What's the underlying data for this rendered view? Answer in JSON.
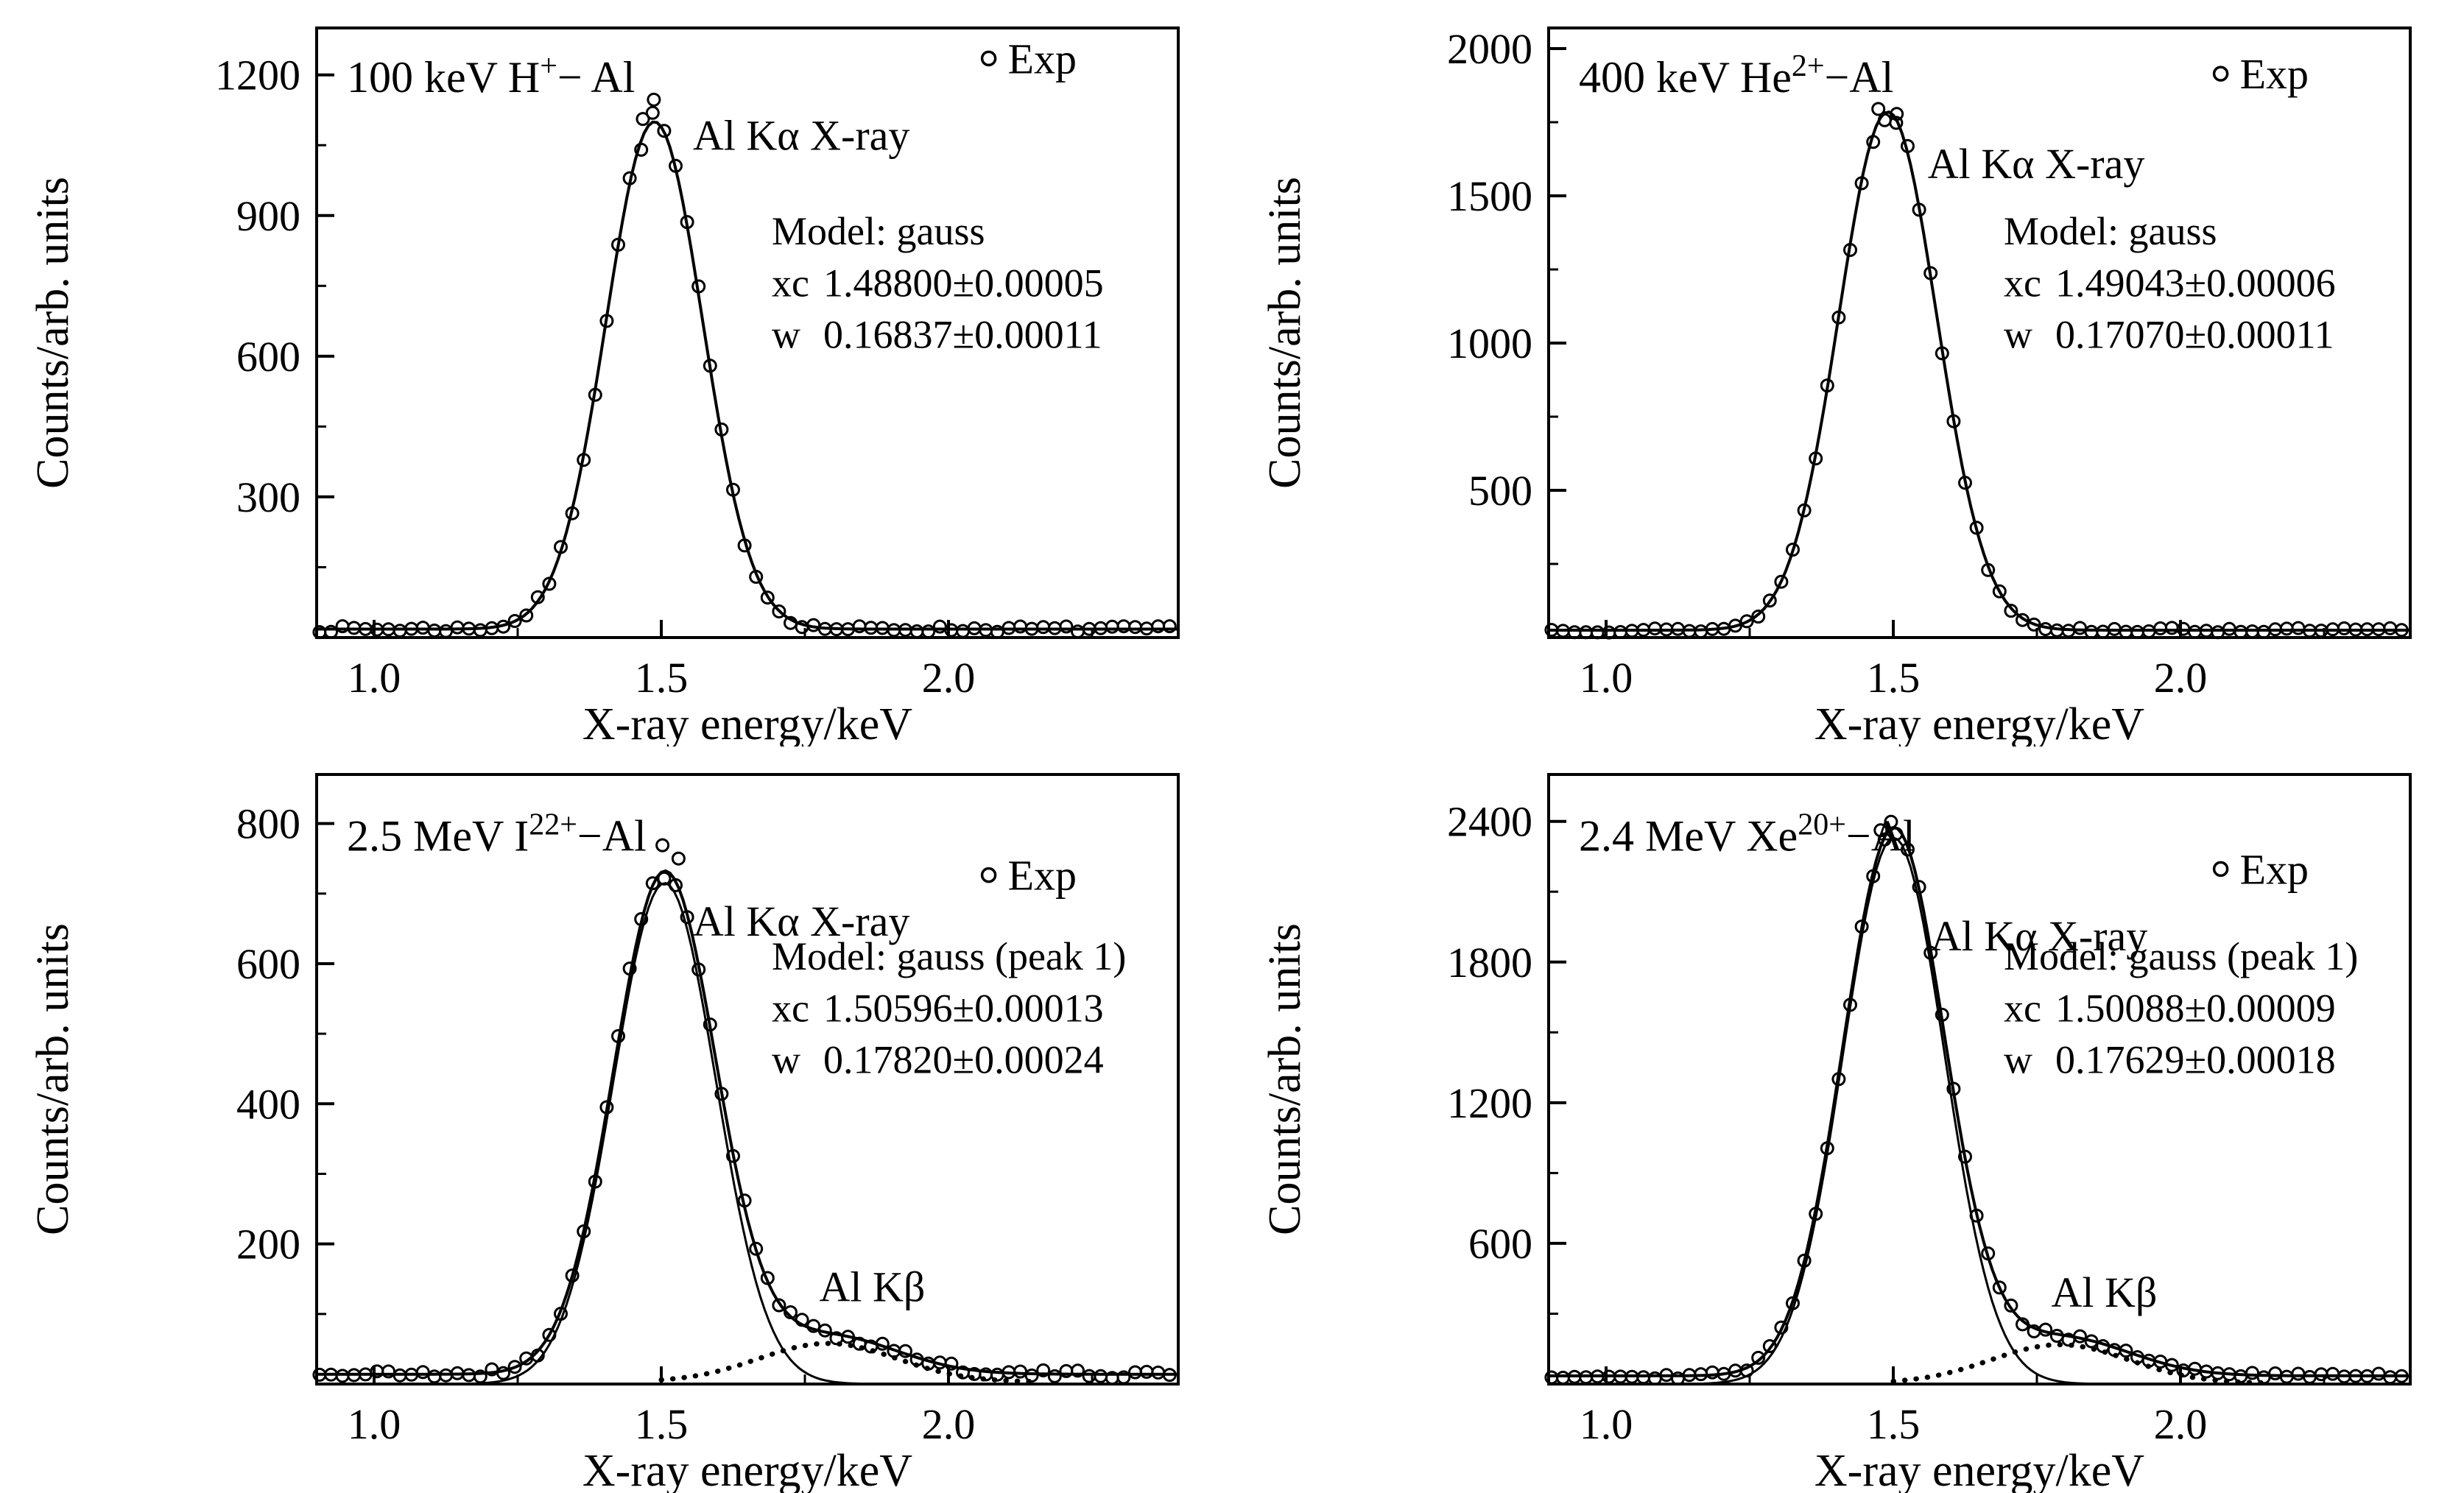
{
  "figure": {
    "background_color": "#ffffff",
    "foreground_color": "#000000",
    "xlabel": "X-ray energy/keV",
    "ylabel": "Counts/arb. units",
    "legend_label": "Exp",
    "legend_marker": "open-circle"
  },
  "chart_data": [
    {
      "type": "scatter",
      "subtype": "xray-spectrum-with-gauss-fit",
      "title_text": "100 keV H⁺− Al",
      "title_parts": [
        {
          "t": "100 keV H"
        },
        {
          "t": "+",
          "sup": true
        },
        {
          "t": "− Al"
        }
      ],
      "xlabel": "X-ray energy/keV",
      "ylabel": "Counts/arb. units",
      "xlim": [
        0.9,
        2.4
      ],
      "ylim": [
        0,
        1300
      ],
      "xticks": [
        1.0,
        1.5,
        2.0
      ],
      "xminor": [
        1.25,
        1.75,
        2.25
      ],
      "yticks": [
        300,
        600,
        900,
        1200
      ],
      "yminor": [
        150,
        450,
        750,
        1050
      ],
      "grid": false,
      "legend_label": "Exp",
      "legend_position": "top-right",
      "peak_annotation": {
        "text": "Al Kα X-ray",
        "x": 1.555,
        "y": 1040
      },
      "model_block": {
        "header": "Model: gauss",
        "params": [
          {
            "k": "xc",
            "v": "1.48800±0.00005"
          },
          {
            "k": "w",
            "v": "0.16837±0.00011"
          }
        ]
      },
      "fit": {
        "model": "gauss",
        "xc": 1.488,
        "w": 0.16837,
        "amplitude": 1082,
        "baseline": 18
      },
      "exp": {
        "x_start": 0.905,
        "x_end": 2.39,
        "x_step": 0.02,
        "noise_base": 4,
        "noise_sqrt_coef": 0.6,
        "seed": 7
      },
      "extra_points": [
        [
          1.487,
          1147
        ],
        [
          1.468,
          1106
        ]
      ],
      "series": [
        {
          "name": "Exp",
          "style": "open-circle-scatter"
        },
        {
          "name": "gauss fit",
          "style": "solid-line"
        }
      ]
    },
    {
      "type": "scatter",
      "subtype": "xray-spectrum-with-gauss-fit",
      "title_text": "400 keV He²⁺−Al",
      "title_parts": [
        {
          "t": "400 keV He"
        },
        {
          "t": "2+",
          "sup": true
        },
        {
          "t": "−Al"
        }
      ],
      "xlabel": "X-ray energy/keV",
      "ylabel": "Counts/arb. units",
      "xlim": [
        0.9,
        2.4
      ],
      "ylim": [
        0,
        2070
      ],
      "xticks": [
        1.0,
        1.5,
        2.0
      ],
      "xminor": [
        1.25,
        1.75,
        2.25
      ],
      "yticks": [
        500,
        1000,
        1500,
        2000
      ],
      "yminor": [
        250,
        750,
        1250,
        1750
      ],
      "grid": false,
      "legend_label": "Exp",
      "legend_position": "top-right",
      "peak_annotation": {
        "text": "Al Kα X-ray",
        "x": 1.56,
        "y": 1560
      },
      "model_block": {
        "header": "Model: gauss",
        "params": [
          {
            "k": "xc",
            "v": "1.49043±0.00006"
          },
          {
            "k": "w",
            "v": "0.17070±0.00011"
          }
        ]
      },
      "fit": {
        "model": "gauss",
        "xc": 1.49043,
        "w": 0.1707,
        "amplitude": 1760,
        "baseline": 25
      },
      "exp": {
        "x_start": 0.905,
        "x_end": 2.39,
        "x_step": 0.02,
        "noise_base": 5,
        "noise_sqrt_coef": 0.55,
        "seed": 13
      },
      "extra_points": [
        [
          1.474,
          1795
        ],
        [
          1.506,
          1778
        ]
      ],
      "series": [
        {
          "name": "Exp",
          "style": "open-circle-scatter"
        },
        {
          "name": "gauss fit",
          "style": "solid-line"
        }
      ]
    },
    {
      "type": "scatter",
      "subtype": "xray-spectrum-with-two-gauss-fit",
      "title_text": "2.5 MeV I²²⁺−Al",
      "title_parts": [
        {
          "t": "2.5 MeV I"
        },
        {
          "t": "22+",
          "sup": true
        },
        {
          "t": "−Al"
        }
      ],
      "xlabel": "X-ray energy/keV",
      "ylabel": "Counts/arb. units",
      "xlim": [
        0.9,
        2.4
      ],
      "ylim": [
        0,
        870
      ],
      "xticks": [
        1.0,
        1.5,
        2.0
      ],
      "xminor": [
        1.25,
        1.75,
        2.25
      ],
      "yticks": [
        200,
        400,
        600,
        800
      ],
      "yminor": [
        100,
        300,
        500,
        700
      ],
      "grid": false,
      "legend_label": "Exp",
      "legend_position": "top-right",
      "peak_annotation": {
        "text": "Al Kα X-ray",
        "x": 1.555,
        "y": 640
      },
      "model_block": {
        "header": "Model: gauss (peak 1)",
        "params": [
          {
            "k": "xc",
            "v": "1.50596±0.00013"
          },
          {
            "k": "w",
            "v": "0.17820±0.00024"
          }
        ]
      },
      "fit": {
        "model": "gauss",
        "xc": 1.50596,
        "w": 0.1782,
        "amplitude": 715,
        "baseline": 14
      },
      "kbeta": {
        "model": "gauss",
        "xc": 1.79,
        "w": 0.24,
        "amplitude": 55,
        "label": "Al Kβ",
        "label_x": 1.775,
        "label_y": 118
      },
      "exp": {
        "x_start": 0.905,
        "x_end": 2.39,
        "x_step": 0.02,
        "noise_base": 3.5,
        "noise_sqrt_coef": 0.5,
        "seed": 21
      },
      "extra_points": [
        [
          1.502,
          769
        ],
        [
          1.53,
          750
        ]
      ],
      "series": [
        {
          "name": "Exp",
          "style": "open-circle-scatter"
        },
        {
          "name": "total fit",
          "style": "solid-line"
        },
        {
          "name": "gauss peak 1",
          "style": "thin-solid-line"
        },
        {
          "name": "Al Kβ component",
          "style": "dotted-line"
        }
      ]
    },
    {
      "type": "scatter",
      "subtype": "xray-spectrum-with-two-gauss-fit",
      "title_text": "2.4 MeV Xe²⁰⁺−Al",
      "title_parts": [
        {
          "t": "2.4 MeV Xe"
        },
        {
          "t": "20+",
          "sup": true
        },
        {
          "t": "−Al"
        }
      ],
      "xlabel": "X-ray energy/keV",
      "ylabel": "Counts/arb. units",
      "xlim": [
        0.9,
        2.4
      ],
      "ylim": [
        0,
        2600
      ],
      "xticks": [
        1.0,
        1.5,
        2.0
      ],
      "xminor": [
        1.25,
        1.75,
        2.25
      ],
      "yticks": [
        600,
        1200,
        1800,
        2400
      ],
      "yminor": [
        300,
        900,
        1500,
        2100
      ],
      "grid": false,
      "legend_label": "Exp",
      "legend_position": "top-right",
      "peak_annotation": {
        "text": "Al Kα X-ray",
        "x": 1.565,
        "y": 1850
      },
      "model_block": {
        "header": "Model: gauss (peak 1)",
        "params": [
          {
            "k": "xc",
            "v": "1.50088±0.00009"
          },
          {
            "k": "w",
            "v": "0.17629±0.00018"
          }
        ]
      },
      "fit": {
        "model": "gauss",
        "xc": 1.50088,
        "w": 0.17629,
        "amplitude": 2330,
        "baseline": 35
      },
      "kbeta": {
        "model": "gauss",
        "xc": 1.79,
        "w": 0.24,
        "amplitude": 165,
        "label": "Al Kβ",
        "label_x": 1.775,
        "label_y": 330
      },
      "exp": {
        "x_start": 0.905,
        "x_end": 2.39,
        "x_step": 0.02,
        "noise_base": 8,
        "noise_sqrt_coef": 0.6,
        "seed": 29
      },
      "extra_points": [
        [
          1.496,
          2398
        ],
        [
          1.478,
          2362
        ]
      ],
      "series": [
        {
          "name": "Exp",
          "style": "open-circle-scatter"
        },
        {
          "name": "total fit",
          "style": "solid-line"
        },
        {
          "name": "gauss peak 1",
          "style": "thin-solid-line"
        },
        {
          "name": "Al Kβ component",
          "style": "dotted-line"
        }
      ]
    }
  ]
}
